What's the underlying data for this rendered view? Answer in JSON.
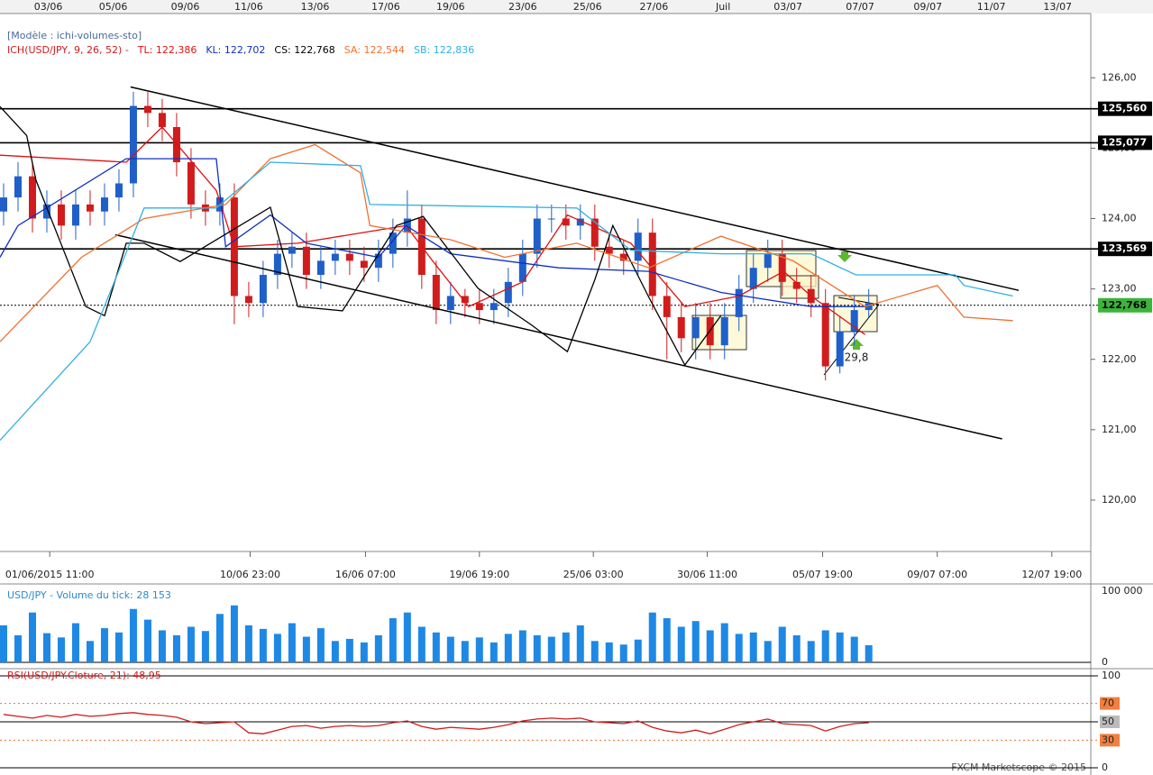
{
  "chart_data": [
    {
      "type": "candlestick",
      "template": "[Modèle : ichi-volumes-sto]",
      "indicator": "ICH(USD/JPY, 9, 26, 52) -",
      "xlim": [
        -0.25,
        75.4
      ],
      "ylim": [
        119.27,
        126.9
      ],
      "yticks": [
        {
          "value": 126,
          "label": "126,00"
        },
        {
          "value": 125,
          "label": "125,00"
        },
        {
          "value": 124,
          "label": "124,00"
        },
        {
          "value": 123,
          "label": "123,00"
        },
        {
          "value": 122,
          "label": "122,00"
        },
        {
          "value": 121,
          "label": "121,00"
        },
        {
          "value": 120,
          "label": "120,00"
        }
      ],
      "xticks": [
        {
          "value": 3.2,
          "label": "01/06/2015 11:00"
        },
        {
          "value": 17.1,
          "label": "10/06 23:00"
        },
        {
          "value": 25.1,
          "label": "16/06 07:00"
        },
        {
          "value": 33,
          "label": "19/06 19:00"
        },
        {
          "value": 40.9,
          "label": "25/06 03:00"
        },
        {
          "value": 48.8,
          "label": "30/06 11:00"
        },
        {
          "value": 56.8,
          "label": "05/07 19:00"
        },
        {
          "value": 64.75,
          "label": "09/07 07:00"
        },
        {
          "value": 72.7,
          "label": "12/07 19:00"
        }
      ],
      "top_xticks": [
        {
          "value": 3.1,
          "label": "03/06"
        },
        {
          "value": 7.6,
          "label": "05/06"
        },
        {
          "value": 12.6,
          "label": "09/06"
        },
        {
          "value": 17,
          "label": "11/06"
        },
        {
          "value": 21.6,
          "label": "13/06"
        },
        {
          "value": 26.5,
          "label": "17/06"
        },
        {
          "value": 31,
          "label": "19/06"
        },
        {
          "value": 36,
          "label": "23/06"
        },
        {
          "value": 40.5,
          "label": "25/06"
        },
        {
          "value": 45.1,
          "label": "27/06"
        },
        {
          "value": 49.9,
          "label": "Juil"
        },
        {
          "value": 54.4,
          "label": "03/07"
        },
        {
          "value": 59.4,
          "label": "07/07"
        },
        {
          "value": 64.1,
          "label": "09/07"
        },
        {
          "value": 68.5,
          "label": "11/07"
        },
        {
          "value": 73.1,
          "label": "13/07"
        }
      ],
      "up_color": "#1f5fc8",
      "down_color": "#d01c1c",
      "open": [
        124.1,
        124.3,
        124.6,
        124.0,
        124.2,
        123.9,
        124.2,
        124.1,
        124.3,
        124.5,
        125.6,
        125.5,
        125.3,
        124.8,
        124.2,
        124.1,
        124.3,
        122.9,
        122.8,
        123.2,
        123.5,
        123.6,
        123.2,
        123.4,
        123.5,
        123.4,
        123.3,
        123.5,
        123.8,
        124.0,
        123.2,
        122.7,
        122.9,
        122.8,
        122.7,
        122.8,
        123.1,
        123.5,
        124.0,
        124.0,
        123.9,
        124.0,
        123.6,
        123.5,
        123.4,
        123.8,
        122.9,
        122.6,
        122.3,
        122.6,
        122.2,
        122.6,
        123.0,
        123.3,
        123.5,
        123.1,
        123.0,
        122.8,
        121.9,
        122.4,
        122.7
      ],
      "high": [
        124.5,
        124.8,
        124.8,
        124.4,
        124.4,
        124.4,
        124.4,
        124.5,
        124.7,
        125.8,
        125.8,
        125.7,
        125.5,
        125.0,
        124.4,
        124.5,
        124.5,
        123.1,
        123.4,
        123.7,
        123.8,
        123.8,
        123.6,
        123.7,
        123.7,
        123.6,
        123.7,
        124.0,
        124.4,
        124.2,
        123.4,
        123.1,
        123.0,
        123.0,
        123.0,
        123.3,
        123.7,
        124.2,
        124.2,
        124.2,
        124.2,
        124.2,
        123.8,
        123.7,
        124.0,
        124.0,
        123.1,
        122.8,
        122.8,
        122.8,
        122.8,
        123.2,
        123.5,
        123.7,
        123.7,
        123.3,
        123.2,
        123.0,
        122.6,
        122.9,
        123.0
      ],
      "low": [
        123.9,
        124.1,
        123.8,
        123.8,
        123.7,
        123.7,
        123.9,
        123.9,
        124.1,
        124.3,
        125.3,
        125.1,
        124.6,
        124.0,
        123.9,
        123.9,
        122.5,
        122.6,
        122.6,
        123.0,
        123.3,
        123.0,
        123.0,
        123.2,
        123.2,
        123.1,
        123.1,
        123.3,
        123.6,
        123.0,
        122.5,
        122.5,
        122.6,
        122.5,
        122.5,
        122.6,
        122.9,
        123.3,
        123.8,
        123.7,
        123.7,
        123.4,
        123.3,
        123.2,
        123.2,
        122.7,
        122.0,
        122.1,
        122.0,
        122.0,
        122.0,
        122.4,
        122.8,
        123.1,
        122.9,
        122.8,
        122.6,
        121.7,
        121.8,
        122.2,
        122.6
      ],
      "close": [
        124.3,
        124.6,
        124.0,
        124.2,
        123.9,
        124.2,
        124.1,
        124.3,
        124.5,
        125.6,
        125.5,
        125.3,
        124.8,
        124.2,
        124.1,
        124.3,
        122.9,
        122.8,
        123.2,
        123.5,
        123.6,
        123.2,
        123.4,
        123.5,
        123.4,
        123.3,
        123.5,
        123.8,
        124.0,
        123.2,
        122.7,
        122.9,
        122.8,
        122.7,
        122.8,
        123.1,
        123.5,
        124.0,
        124.0,
        123.9,
        124.0,
        123.6,
        123.5,
        123.4,
        123.8,
        122.9,
        122.6,
        122.3,
        122.6,
        122.2,
        122.6,
        123.0,
        123.3,
        123.5,
        123.1,
        123.0,
        122.8,
        121.9,
        122.4,
        122.7,
        122.8
      ],
      "series": [
        {
          "name": "TL: 122,386",
          "color": "#e01010",
          "x": [
            -0.25,
            8.5,
            11,
            14.75,
            16,
            20.4,
            27.9,
            29.75,
            32.25,
            36,
            39.1,
            43.5,
            47.25,
            51,
            54.1,
            56,
            59.75
          ],
          "values": [
            124.9,
            124.8,
            125.3,
            124.4,
            123.6,
            123.65,
            123.9,
            123.4,
            122.75,
            123.1,
            124.05,
            123.65,
            122.75,
            122.9,
            123.25,
            122.9,
            122.35
          ]
        },
        {
          "name": "KL: 122,702",
          "color": "#1030c0",
          "x": [
            -0.25,
            1,
            8.5,
            14.75,
            15.4,
            18.5,
            21,
            26,
            27.9,
            31,
            38.5,
            44.75,
            49.75,
            56,
            59.75
          ],
          "values": [
            123.45,
            123.9,
            124.85,
            124.85,
            123.6,
            124.05,
            123.65,
            123.45,
            123.9,
            123.5,
            123.3,
            123.25,
            122.95,
            122.75,
            122.75
          ]
        },
        {
          "name": "CS: 122,768",
          "color": "#000000",
          "x": [
            -0.25,
            1.6,
            2.25,
            5.7,
            7,
            8.5,
            9.75,
            12.25,
            18.5,
            20.4,
            23.5,
            27.25,
            29.1,
            32.9,
            36.6,
            39.1,
            41,
            42.25,
            44.75,
            47.25,
            49.75
          ],
          "values": [
            125.59,
            125.18,
            124.54,
            122.75,
            122.62,
            123.65,
            123.65,
            123.39,
            124.16,
            122.75,
            122.69,
            123.9,
            124.03,
            123.01,
            122.49,
            122.11,
            123.13,
            123.9,
            122.88,
            121.92,
            122.62
          ]
        },
        {
          "name": "SA: 122,544",
          "color": "#f07030",
          "x": [
            -0.25,
            5.4,
            9.75,
            15.4,
            18.5,
            21.6,
            24.75,
            25.4,
            31,
            34.75,
            39.75,
            44.75,
            49.75,
            54.75,
            59.75,
            64.75,
            66.6,
            70
          ],
          "values": [
            122.25,
            123.45,
            124.0,
            124.2,
            124.85,
            125.05,
            124.65,
            123.9,
            123.7,
            123.45,
            123.65,
            123.3,
            123.75,
            123.4,
            122.75,
            123.05,
            122.6,
            122.55
          ]
        },
        {
          "name": "SB: 122,836",
          "color": "#30b0e0",
          "x": [
            -0.25,
            6,
            9.75,
            14.75,
            18.5,
            24.75,
            25.4,
            39.75,
            43.5,
            49.75,
            56,
            59.1,
            66,
            66.6,
            70
          ],
          "values": [
            120.85,
            122.25,
            124.15,
            124.15,
            124.8,
            124.75,
            124.2,
            124.15,
            123.55,
            123.5,
            123.5,
            123.2,
            123.2,
            123.05,
            122.9
          ]
        }
      ],
      "levels": [
        {
          "value": 125.56,
          "label": "125,560"
        },
        {
          "value": 125.077,
          "label": "125,077"
        },
        {
          "value": 123.569,
          "label": "123,569"
        }
      ],
      "last": {
        "value": 122.768,
        "label": "122,768"
      },
      "trendlines": [
        {
          "x": [
            8.8,
            70.4
          ],
          "values": [
            125.87,
            122.98
          ]
        },
        {
          "x": [
            7.75,
            69.25
          ],
          "values": [
            123.77,
            120.87
          ]
        }
      ],
      "annotation": "29,8"
    },
    {
      "type": "bar",
      "title": "USD/JPY - Volume du tick: 28 153",
      "color": "#1e88e5",
      "ylim": [
        0,
        100000
      ],
      "yticks": [
        {
          "value": 100000,
          "label": "100 000"
        },
        0
      ],
      "values": [
        52000,
        38000,
        70000,
        41000,
        35000,
        55000,
        30000,
        48000,
        42000,
        75000,
        60000,
        45000,
        38000,
        50000,
        44000,
        68000,
        80000,
        52000,
        47000,
        40000,
        55000,
        36000,
        48000,
        30000,
        33000,
        28000,
        38000,
        62000,
        70000,
        50000,
        42000,
        36000,
        30000,
        35000,
        28000,
        40000,
        45000,
        38000,
        36000,
        42000,
        52000,
        30000,
        28000,
        25000,
        32000,
        70000,
        62000,
        50000,
        58000,
        45000,
        55000,
        40000,
        42000,
        30000,
        50000,
        38000,
        30000,
        45000,
        42000,
        36000,
        24000
      ]
    },
    {
      "type": "line",
      "title": "RSI(USD/JPY.Cloture, 21): 48,95",
      "color": "#d01c1c",
      "ylim": [
        0,
        100
      ],
      "yticks": [
        100,
        70,
        50,
        30,
        0
      ],
      "values": [
        58,
        56,
        54,
        57,
        55,
        58,
        56,
        57,
        59,
        60,
        58,
        57,
        55,
        50,
        48,
        49,
        50,
        38,
        37,
        41,
        45,
        46,
        43,
        45,
        46,
        45,
        46,
        49,
        51,
        45,
        42,
        44,
        43,
        42,
        44,
        47,
        51,
        53,
        54,
        53,
        54,
        50,
        49,
        48,
        51,
        44,
        40,
        38,
        41,
        37,
        42,
        47,
        50,
        53,
        48,
        47,
        46,
        40,
        45,
        48,
        49
      ]
    }
  ],
  "footer": "FXCM Marketscope © 2015"
}
